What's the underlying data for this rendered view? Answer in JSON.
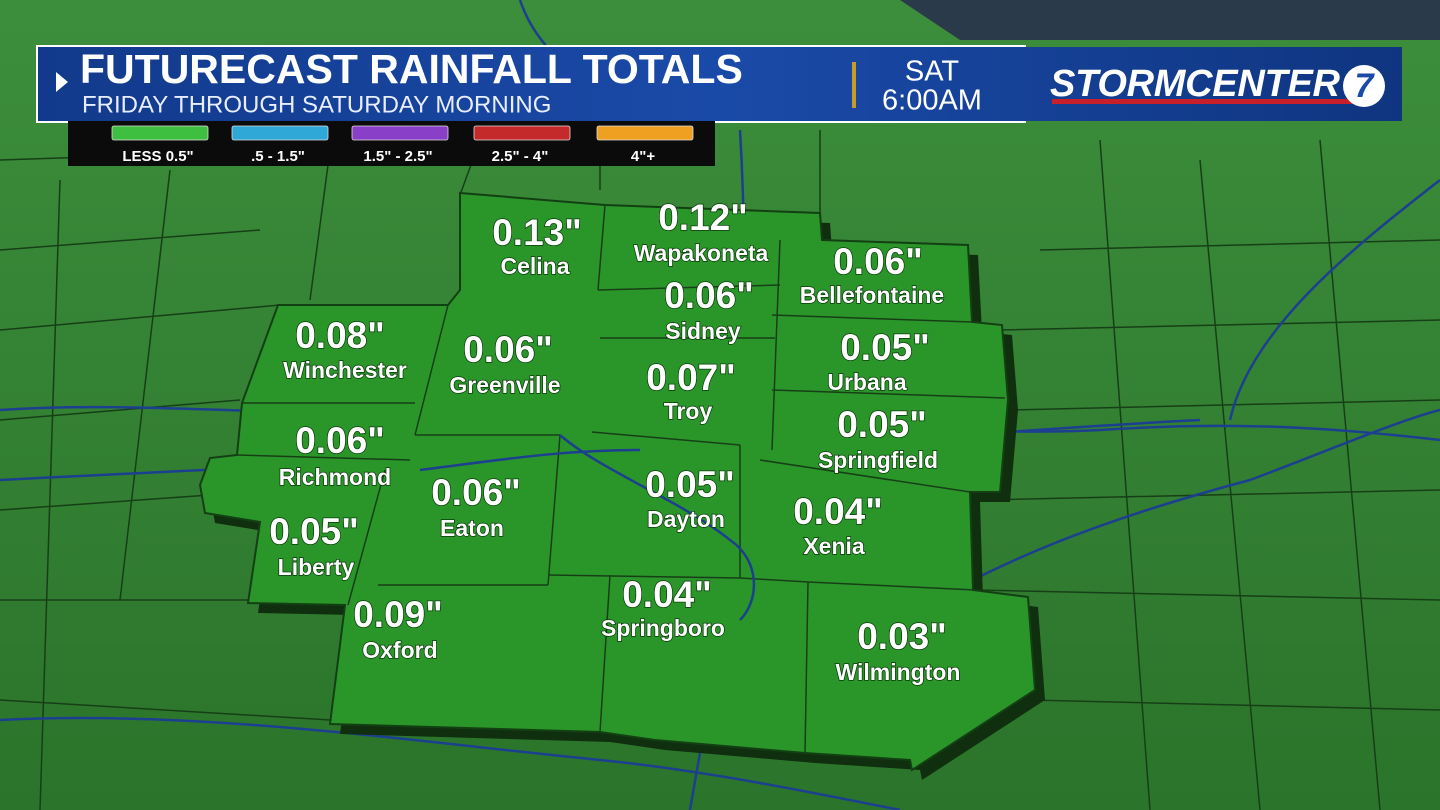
{
  "header": {
    "title": "FUTURECAST RAINFALL TOTALS",
    "subtitle": "FRIDAY THROUGH SATURDAY MORNING",
    "day": "SAT",
    "time": "6:00AM",
    "logo": "STORMCENTER",
    "logo_number": "7"
  },
  "legend": [
    {
      "label": "LESS 0.5\"",
      "color": "#3fbf3f"
    },
    {
      "label": ".5 - 1.5\"",
      "color": "#2fa8d8"
    },
    {
      "label": "1.5\" - 2.5\"",
      "color": "#8a3fc8"
    },
    {
      "label": "2.5\" - 4\"",
      "color": "#c42a2a"
    },
    {
      "label": "4\"+",
      "color": "#f0a020"
    }
  ],
  "locations": [
    {
      "name": "Celina",
      "amount": "0.13\""
    },
    {
      "name": "Wapakoneta",
      "amount": "0.12\""
    },
    {
      "name": "Bellefontaine",
      "amount": "0.06\""
    },
    {
      "name": "Sidney",
      "amount": "0.06\""
    },
    {
      "name": "Winchester",
      "amount": "0.08\""
    },
    {
      "name": "Greenville",
      "amount": "0.06\""
    },
    {
      "name": "Urbana",
      "amount": "0.05\""
    },
    {
      "name": "Troy",
      "amount": "0.07\""
    },
    {
      "name": "Springfield",
      "amount": "0.05\""
    },
    {
      "name": "Richmond",
      "amount": "0.06\""
    },
    {
      "name": "Eaton",
      "amount": "0.06\""
    },
    {
      "name": "Dayton",
      "amount": "0.05\""
    },
    {
      "name": "Xenia",
      "amount": "0.04\""
    },
    {
      "name": "Liberty",
      "amount": "0.05\""
    },
    {
      "name": "Oxford",
      "amount": "0.09\""
    },
    {
      "name": "Springboro",
      "amount": "0.04\""
    },
    {
      "name": "Wilmington",
      "amount": "0.03\""
    }
  ]
}
